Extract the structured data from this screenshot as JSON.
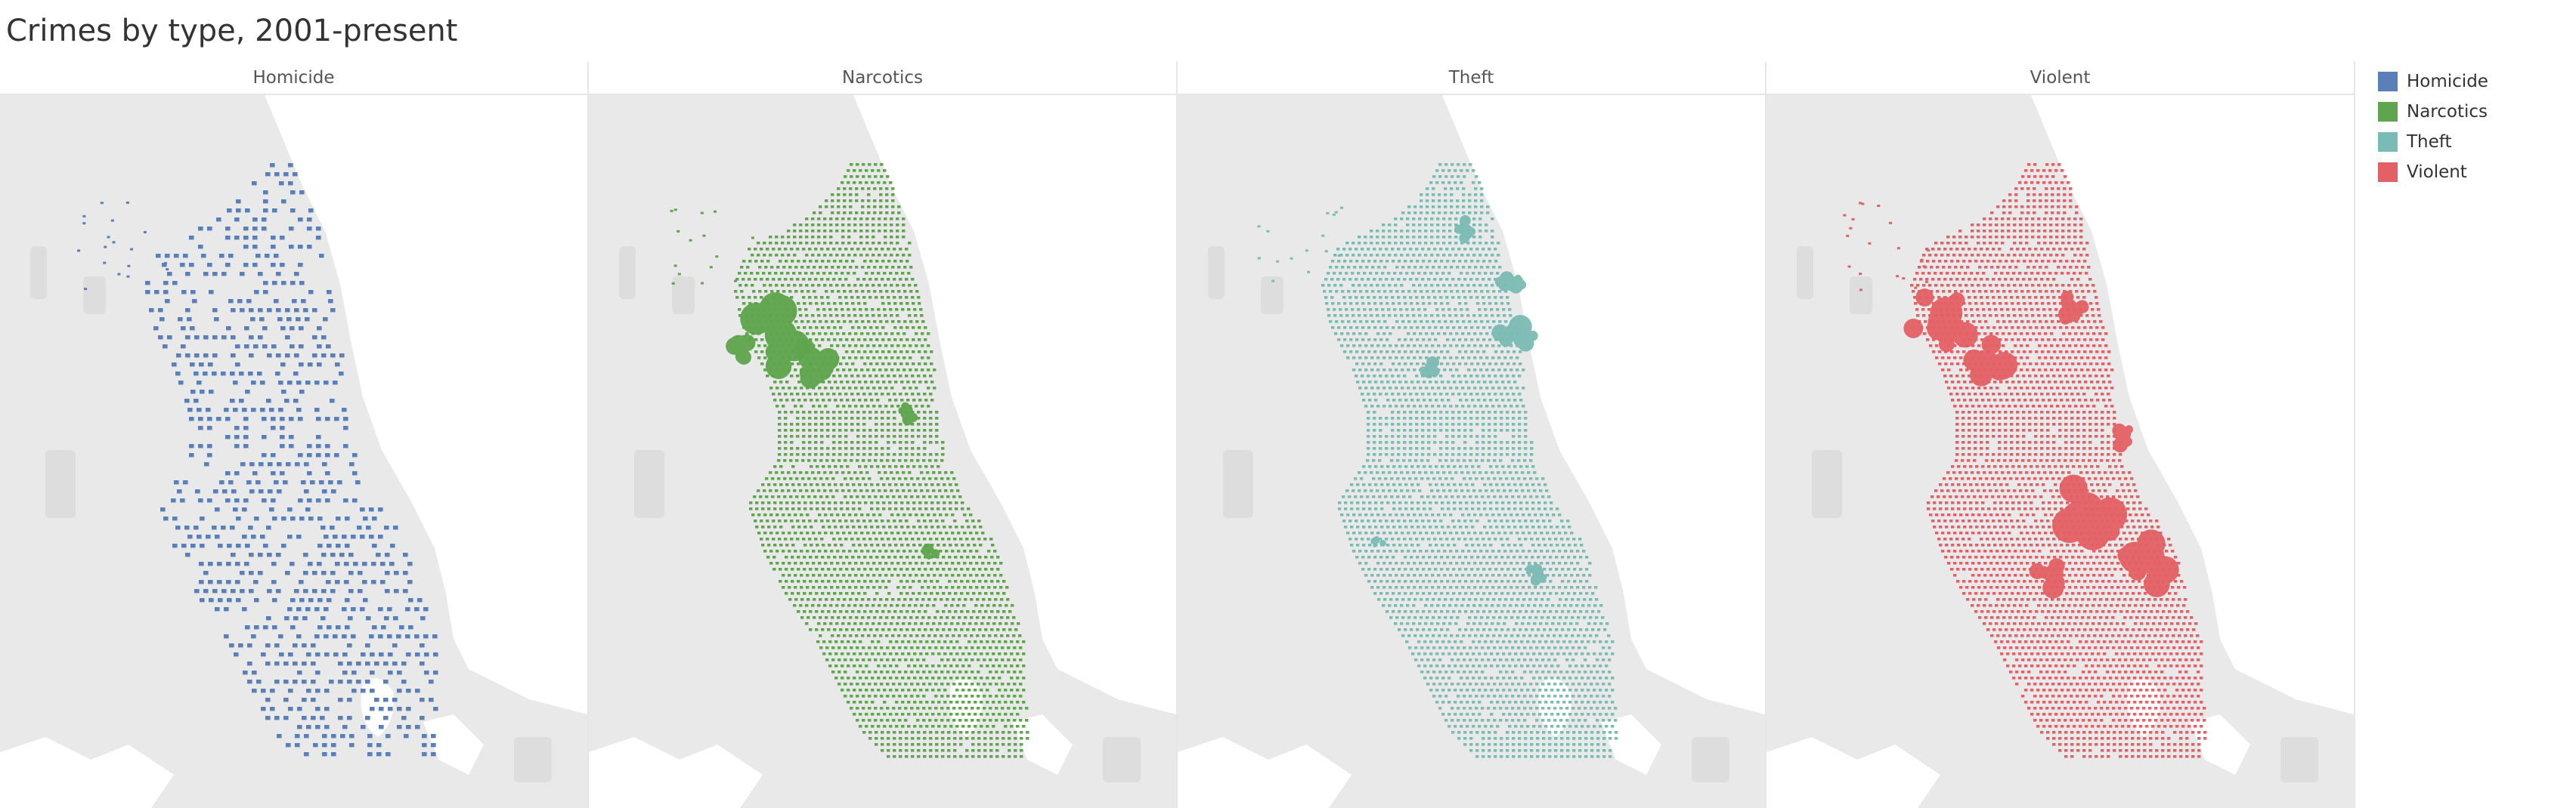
{
  "title": "Crimes by type, 2001-present",
  "panels": [
    {
      "label": "Homicide",
      "color": "#5b80b7",
      "density": "low",
      "hotspots": "none"
    },
    {
      "label": "Narcotics",
      "color": "#5ea54d",
      "density": "high",
      "hotspots": "west-side"
    },
    {
      "label": "Theft",
      "color": "#7bbbb5",
      "density": "high",
      "hotspots": "downtown"
    },
    {
      "label": "Violent",
      "color": "#e36165",
      "density": "high",
      "hotspots": "west-and-south-side"
    }
  ],
  "legend": {
    "items": [
      {
        "label": "Homicide",
        "color": "#5b80b7"
      },
      {
        "label": "Narcotics",
        "color": "#5ea54d"
      },
      {
        "label": "Theft",
        "color": "#7bbbb5"
      },
      {
        "label": "Violent",
        "color": "#e36165"
      }
    ]
  },
  "map_colors": {
    "land": "#e9e9e9",
    "water": "#ffffff",
    "parks": "#dddddd"
  }
}
